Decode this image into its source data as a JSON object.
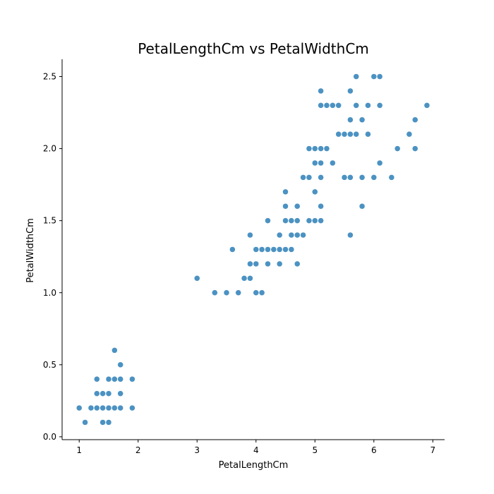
{
  "chart_data": {
    "type": "scatter",
    "title": "PetalLengthCm vs PetalWidthCm",
    "xlabel": "PetalLengthCm",
    "ylabel": "PetalWidthCm",
    "xlim": [
      0.71,
      7.2
    ],
    "ylim": [
      -0.02,
      2.62
    ],
    "xticks": [
      1,
      2,
      3,
      4,
      5,
      6,
      7
    ],
    "yticks": [
      0.0,
      0.5,
      1.0,
      1.5,
      2.0,
      2.5
    ],
    "ytick_labels": [
      "0.0",
      "0.5",
      "1.0",
      "1.5",
      "2.0",
      "2.5"
    ],
    "xtick_labels": [
      "1",
      "2",
      "3",
      "4",
      "5",
      "6",
      "7"
    ],
    "grid": false,
    "color": "#1f77b4",
    "points": [
      [
        1.0,
        0.2
      ],
      [
        1.1,
        0.1
      ],
      [
        1.2,
        0.2
      ],
      [
        1.3,
        0.2
      ],
      [
        1.3,
        0.3
      ],
      [
        1.3,
        0.4
      ],
      [
        1.4,
        0.1
      ],
      [
        1.4,
        0.2
      ],
      [
        1.4,
        0.3
      ],
      [
        1.5,
        0.1
      ],
      [
        1.5,
        0.2
      ],
      [
        1.5,
        0.3
      ],
      [
        1.5,
        0.4
      ],
      [
        1.6,
        0.2
      ],
      [
        1.6,
        0.4
      ],
      [
        1.6,
        0.6
      ],
      [
        1.7,
        0.2
      ],
      [
        1.7,
        0.3
      ],
      [
        1.7,
        0.4
      ],
      [
        1.7,
        0.5
      ],
      [
        1.9,
        0.2
      ],
      [
        1.9,
        0.4
      ],
      [
        3.0,
        1.1
      ],
      [
        3.3,
        1.0
      ],
      [
        3.5,
        1.0
      ],
      [
        3.6,
        1.3
      ],
      [
        3.7,
        1.0
      ],
      [
        3.8,
        1.1
      ],
      [
        3.9,
        1.1
      ],
      [
        3.9,
        1.2
      ],
      [
        3.9,
        1.4
      ],
      [
        4.0,
        1.0
      ],
      [
        4.0,
        1.2
      ],
      [
        4.0,
        1.3
      ],
      [
        4.1,
        1.0
      ],
      [
        4.1,
        1.3
      ],
      [
        4.2,
        1.2
      ],
      [
        4.2,
        1.3
      ],
      [
        4.2,
        1.5
      ],
      [
        4.3,
        1.3
      ],
      [
        4.4,
        1.2
      ],
      [
        4.4,
        1.3
      ],
      [
        4.4,
        1.4
      ],
      [
        4.5,
        1.3
      ],
      [
        4.5,
        1.5
      ],
      [
        4.5,
        1.6
      ],
      [
        4.5,
        1.7
      ],
      [
        4.6,
        1.3
      ],
      [
        4.6,
        1.4
      ],
      [
        4.6,
        1.5
      ],
      [
        4.7,
        1.2
      ],
      [
        4.7,
        1.4
      ],
      [
        4.7,
        1.5
      ],
      [
        4.7,
        1.6
      ],
      [
        4.8,
        1.4
      ],
      [
        4.8,
        1.8
      ],
      [
        4.9,
        1.5
      ],
      [
        4.9,
        1.8
      ],
      [
        4.9,
        2.0
      ],
      [
        5.0,
        1.5
      ],
      [
        5.0,
        1.7
      ],
      [
        5.0,
        1.9
      ],
      [
        5.0,
        2.0
      ],
      [
        5.1,
        1.5
      ],
      [
        5.1,
        1.6
      ],
      [
        5.1,
        1.8
      ],
      [
        5.1,
        1.9
      ],
      [
        5.1,
        2.0
      ],
      [
        5.1,
        2.3
      ],
      [
        5.1,
        2.4
      ],
      [
        5.2,
        2.0
      ],
      [
        5.2,
        2.3
      ],
      [
        5.3,
        1.9
      ],
      [
        5.3,
        2.3
      ],
      [
        5.4,
        2.1
      ],
      [
        5.4,
        2.3
      ],
      [
        5.5,
        1.8
      ],
      [
        5.5,
        2.1
      ],
      [
        5.6,
        1.4
      ],
      [
        5.6,
        1.8
      ],
      [
        5.6,
        2.1
      ],
      [
        5.6,
        2.2
      ],
      [
        5.6,
        2.4
      ],
      [
        5.7,
        2.1
      ],
      [
        5.7,
        2.3
      ],
      [
        5.7,
        2.5
      ],
      [
        5.8,
        1.6
      ],
      [
        5.8,
        1.8
      ],
      [
        5.8,
        2.2
      ],
      [
        5.9,
        2.1
      ],
      [
        5.9,
        2.3
      ],
      [
        6.0,
        1.8
      ],
      [
        6.0,
        2.5
      ],
      [
        6.1,
        1.9
      ],
      [
        6.1,
        2.3
      ],
      [
        6.1,
        2.5
      ],
      [
        6.3,
        1.8
      ],
      [
        6.4,
        2.0
      ],
      [
        6.6,
        2.1
      ],
      [
        6.7,
        2.0
      ],
      [
        6.7,
        2.2
      ],
      [
        6.9,
        2.3
      ]
    ]
  }
}
